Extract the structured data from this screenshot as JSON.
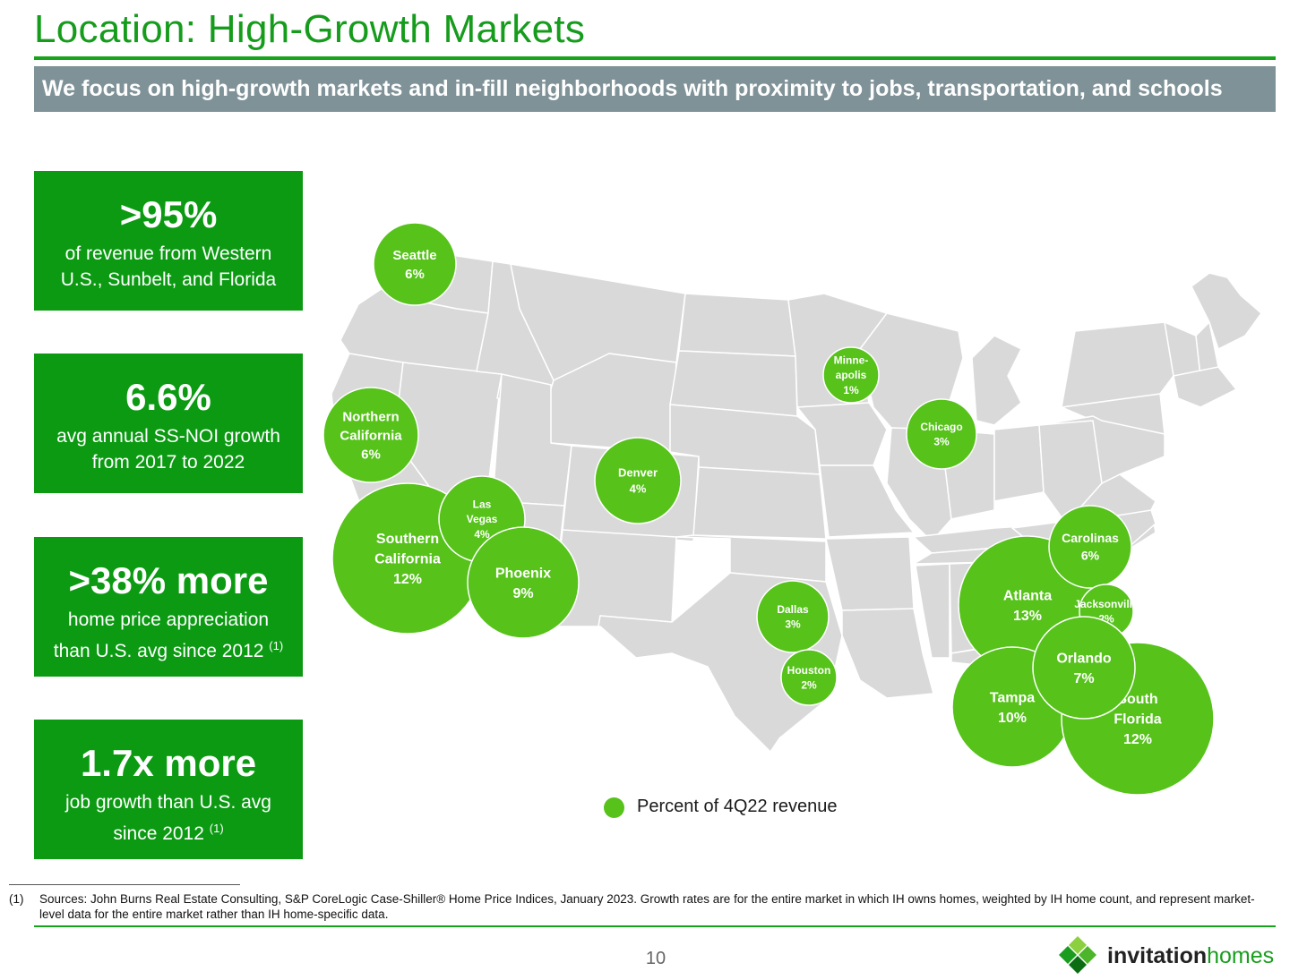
{
  "header": {
    "title": "Location: High-Growth Markets",
    "banner": "We focus on high-growth markets and in-fill neighborhoods with proximity to jobs, transportation, and schools"
  },
  "stats": [
    {
      "value": ">95%",
      "line1": "of revenue from Western",
      "line2": "U.S., Sunbelt, and Florida",
      "note": ""
    },
    {
      "value": "6.6%",
      "line1": "avg annual SS-NOI growth",
      "line2": "from 2017 to 2022",
      "note": ""
    },
    {
      "value": ">38% more",
      "line1": "home price appreciation",
      "line2": "than U.S. avg since 2012",
      "note": "(1)"
    },
    {
      "value": "1.7x more",
      "line1": "job growth than U.S. avg",
      "line2": "since 2012",
      "note": "(1)"
    }
  ],
  "markets": [
    {
      "name": "Seattle",
      "pct": 6
    },
    {
      "name": "Northern California",
      "pct": 6
    },
    {
      "name": "Southern California",
      "pct": 12
    },
    {
      "name": "Las Vegas",
      "pct": 4
    },
    {
      "name": "Phoenix",
      "pct": 9
    },
    {
      "name": "Denver",
      "pct": 4
    },
    {
      "name": "Dallas",
      "pct": 3
    },
    {
      "name": "Houston",
      "pct": 2
    },
    {
      "name": "Minneapolis",
      "pct": 1
    },
    {
      "name": "Chicago",
      "pct": 3
    },
    {
      "name": "Atlanta",
      "pct": 13
    },
    {
      "name": "Carolinas",
      "pct": 6
    },
    {
      "name": "Jacksonville",
      "pct": 2
    },
    {
      "name": "Orlando",
      "pct": 7
    },
    {
      "name": "Tampa",
      "pct": 10
    },
    {
      "name": "South Florida",
      "pct": 12
    }
  ],
  "colors": {
    "brand_green": "#169c1c",
    "stat_box": "#0b9a12",
    "bubble": "#56c21a",
    "banner": "#7f9298",
    "state_fill": "#d9d9d9",
    "state_stroke": "#ffffff"
  },
  "legend": {
    "label": "Percent of 4Q22 revenue"
  },
  "footnote": {
    "marker": "(1)",
    "text": "Sources: John Burns Real Estate Consulting, S&P CoreLogic Case-Shiller® Home Price Indices, January 2023.  Growth rates are for the entire market in which IH owns homes, weighted by IH home count, and represent market-level data for the entire market rather than IH home-specific data."
  },
  "page": {
    "number": "10"
  },
  "logo": {
    "word1": "invitation",
    "word2": "homes",
    "icon": "invitation-homes-diamond-icon"
  }
}
